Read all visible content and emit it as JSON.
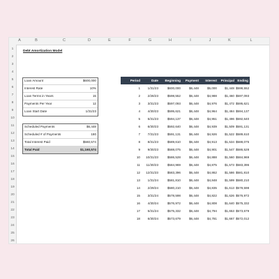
{
  "columns": [
    "A",
    "B",
    "C",
    "D",
    "E",
    "F",
    "G",
    "H",
    "I",
    "J",
    "K",
    "L"
  ],
  "rows": [
    "1",
    "2",
    "3",
    "4",
    "5",
    "6",
    "7",
    "8",
    "9",
    "10",
    "11",
    "12",
    "13",
    "14",
    "15",
    "16",
    "17",
    "18",
    "19",
    "20",
    "21",
    "22",
    "23",
    "24",
    "25",
    "26"
  ],
  "title": "Debt Amortization Model",
  "inputs": [
    {
      "label": "Loan Amount",
      "value": "$600,000"
    },
    {
      "label": "Interest Rate",
      "value": "10%"
    },
    {
      "label": "Loan Terms in Years",
      "value": "15"
    },
    {
      "label": "Payments Per Year",
      "value": "12"
    },
    {
      "label": "Loan Start Date",
      "value": "1/31/23"
    }
  ],
  "summary": [
    {
      "label": "Scheduled Payments",
      "value": "$6,448"
    },
    {
      "label": "Scheduled # of Payments",
      "value": "180"
    },
    {
      "label": "Total Interest Paid",
      "value": "$560,574"
    },
    {
      "label": "Total Paid",
      "value": "$1,160,574"
    }
  ],
  "table_headers": [
    "Period",
    "Date",
    "Beginning",
    "Payment",
    "Interest",
    "Principal",
    "Ending"
  ],
  "table_rows": [
    [
      "1",
      "1/31/23",
      "$600,000",
      "$6,448",
      "$5,000",
      "$1,448",
      "$598,552"
    ],
    [
      "2",
      "2/28/23",
      "$598,552",
      "$6,448",
      "$4,988",
      "$1,460",
      "$597,093"
    ],
    [
      "3",
      "3/31/23",
      "$597,093",
      "$6,448",
      "$4,976",
      "$1,472",
      "$595,621"
    ],
    [
      "4",
      "4/30/23",
      "$595,621",
      "$6,448",
      "$4,964",
      "$1,484",
      "$594,137"
    ],
    [
      "5",
      "5/31/23",
      "$594,137",
      "$6,448",
      "$4,951",
      "$1,496",
      "$592,640"
    ],
    [
      "6",
      "6/30/23",
      "$592,640",
      "$6,448",
      "$4,939",
      "$1,509",
      "$591,131"
    ],
    [
      "7",
      "7/31/23",
      "$591,131",
      "$6,448",
      "$4,926",
      "$1,522",
      "$589,610"
    ],
    [
      "8",
      "8/31/23",
      "$589,610",
      "$6,448",
      "$4,913",
      "$1,534",
      "$588,075"
    ],
    [
      "9",
      "9/30/23",
      "$588,075",
      "$6,448",
      "$4,901",
      "$1,547",
      "$586,528"
    ],
    [
      "10",
      "10/31/23",
      "$586,528",
      "$6,448",
      "$4,888",
      "$1,560",
      "$584,969"
    ],
    [
      "11",
      "11/30/23",
      "$584,969",
      "$6,448",
      "$4,875",
      "$1,573",
      "$583,396"
    ],
    [
      "12",
      "12/31/23",
      "$583,396",
      "$6,448",
      "$4,862",
      "$1,586",
      "$581,810"
    ],
    [
      "13",
      "1/31/24",
      "$581,810",
      "$6,448",
      "$4,848",
      "$1,599",
      "$580,210"
    ],
    [
      "14",
      "2/29/24",
      "$580,210",
      "$6,448",
      "$4,835",
      "$1,613",
      "$578,598"
    ],
    [
      "15",
      "3/31/24",
      "$578,598",
      "$6,448",
      "$4,822",
      "$1,626",
      "$576,972"
    ],
    [
      "16",
      "4/30/24",
      "$576,972",
      "$6,448",
      "$4,808",
      "$1,640",
      "$575,332"
    ],
    [
      "17",
      "5/31/24",
      "$575,332",
      "$6,448",
      "$4,794",
      "$1,653",
      "$573,679"
    ],
    [
      "18",
      "6/30/24",
      "$573,679",
      "$6,448",
      "$4,781",
      "$1,667",
      "$572,012"
    ]
  ]
}
